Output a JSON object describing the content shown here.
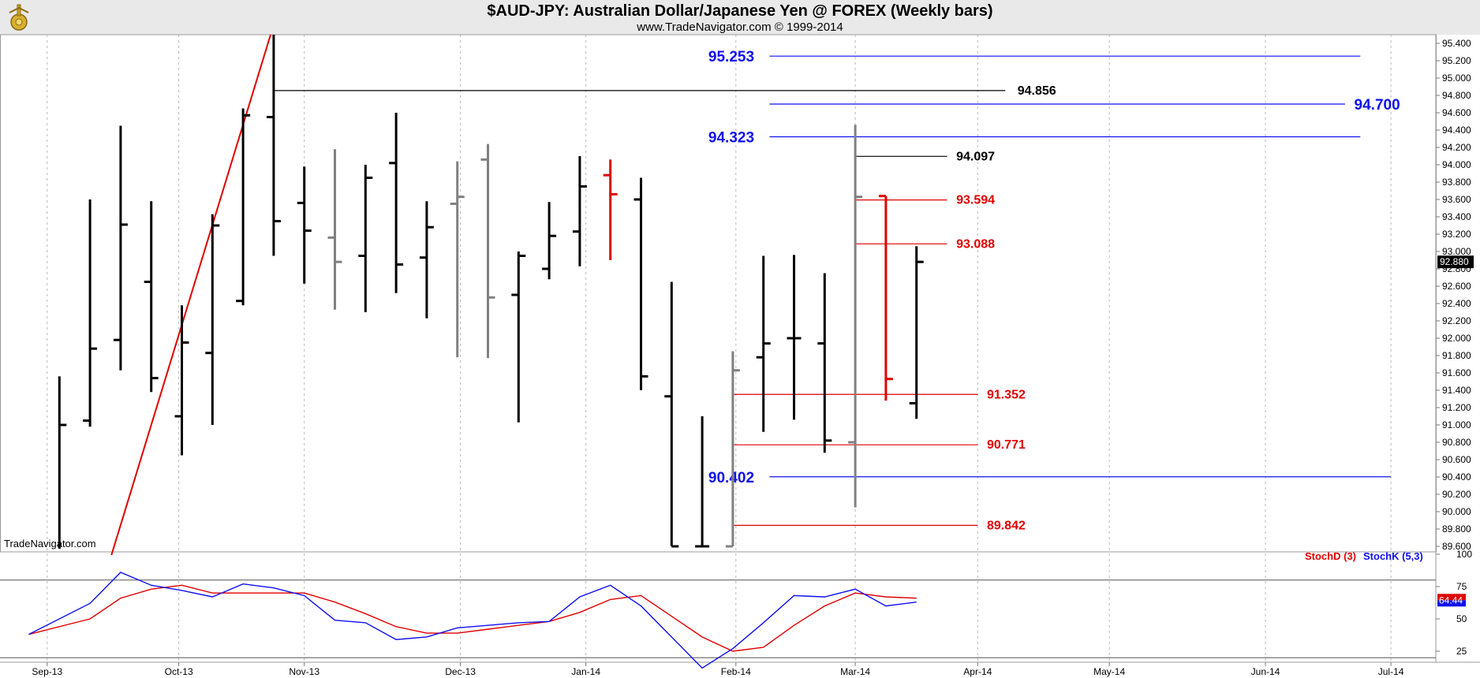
{
  "header": {
    "title": "$AUD-JPY:  Australian Dollar/Japanese Yen @ FOREX  (Weekly bars)",
    "subtitle": "www.TradeNavigator.com © 1999-2014",
    "watermark": "TradeNavigator.com"
  },
  "colors": {
    "up": "#000000",
    "neutral": "#808080",
    "down": "#e00000",
    "blue": "#1010ee",
    "red": "#e00000",
    "black": "#000000"
  },
  "chart_data": [
    {
      "type": "ohlc",
      "title": "$AUD-JPY:  Australian Dollar/Japanese Yen @ FOREX  (Weekly bars)",
      "ylim": [
        89.5,
        95.5
      ],
      "y_ticks": [
        "89.600",
        "89.800",
        "90.000",
        "90.200",
        "90.400",
        "90.600",
        "90.800",
        "91.000",
        "91.200",
        "91.400",
        "91.600",
        "91.800",
        "92.000",
        "92.200",
        "92.400",
        "92.600",
        "92.800",
        "93.000",
        "93.200",
        "93.400",
        "93.600",
        "93.800",
        "94.000",
        "94.200",
        "94.400",
        "94.600",
        "94.800",
        "95.000",
        "95.200",
        "95.400"
      ],
      "last_price": "92.880",
      "x_labels": [
        {
          "week": 0.6,
          "label": "Sep-13"
        },
        {
          "week": 4.9,
          "label": "Oct-13"
        },
        {
          "week": 9.0,
          "label": "Nov-13"
        },
        {
          "week": 14.1,
          "label": "Dec-13"
        },
        {
          "week": 18.2,
          "label": "Jan-14"
        },
        {
          "week": 23.1,
          "label": "Feb-14"
        },
        {
          "week": 27.0,
          "label": "Mar-14"
        },
        {
          "week": 31.0,
          "label": "Apr-14"
        },
        {
          "week": 35.3,
          "label": "May-14"
        },
        {
          "week": 40.4,
          "label": "Jun-14"
        },
        {
          "week": 44.5,
          "label": "Jul-14"
        }
      ],
      "bars": [
        {
          "week": 1,
          "open": 89.3,
          "high": 91.56,
          "low": 89.3,
          "close": 91.0,
          "color": "up"
        },
        {
          "week": 2,
          "open": 91.05,
          "high": 93.6,
          "low": 90.98,
          "close": 91.88,
          "color": "up"
        },
        {
          "week": 3,
          "open": 91.98,
          "high": 94.45,
          "low": 91.63,
          "close": 93.31,
          "color": "up"
        },
        {
          "week": 4,
          "open": 92.65,
          "high": 93.58,
          "low": 91.38,
          "close": 91.54,
          "color": "up"
        },
        {
          "week": 5,
          "open": 91.1,
          "high": 92.38,
          "low": 90.65,
          "close": 91.95,
          "color": "up"
        },
        {
          "week": 6,
          "open": 91.83,
          "high": 93.43,
          "low": 91.0,
          "close": 93.3,
          "color": "up"
        },
        {
          "week": 7,
          "open": 92.43,
          "high": 94.65,
          "low": 92.38,
          "close": 94.57,
          "color": "up"
        },
        {
          "week": 8,
          "open": 94.55,
          "high": 95.5,
          "low": 92.95,
          "close": 93.35,
          "color": "up"
        },
        {
          "week": 9,
          "open": 93.56,
          "high": 93.98,
          "low": 92.63,
          "close": 93.24,
          "color": "up"
        },
        {
          "week": 10,
          "open": 93.16,
          "high": 94.18,
          "low": 92.33,
          "close": 92.88,
          "color": "neutral"
        },
        {
          "week": 11,
          "open": 92.95,
          "high": 94.0,
          "low": 92.3,
          "close": 93.85,
          "color": "up"
        },
        {
          "week": 12,
          "open": 94.02,
          "high": 94.6,
          "low": 92.52,
          "close": 92.85,
          "color": "up"
        },
        {
          "week": 13,
          "open": 92.93,
          "high": 93.58,
          "low": 92.23,
          "close": 93.28,
          "color": "up"
        },
        {
          "week": 14,
          "open": 93.55,
          "high": 94.04,
          "low": 91.78,
          "close": 93.63,
          "color": "neutral"
        },
        {
          "week": 15,
          "open": 94.06,
          "high": 94.24,
          "low": 91.77,
          "close": 92.47,
          "color": "neutral"
        },
        {
          "week": 16,
          "open": 92.5,
          "high": 93.0,
          "low": 91.03,
          "close": 92.95,
          "color": "up"
        },
        {
          "week": 17,
          "open": 92.8,
          "high": 93.57,
          "low": 92.68,
          "close": 93.18,
          "color": "up"
        },
        {
          "week": 18,
          "open": 93.23,
          "high": 94.1,
          "low": 92.83,
          "close": 93.75,
          "color": "up"
        },
        {
          "week": 19,
          "open": 93.88,
          "high": 94.06,
          "low": 92.9,
          "close": 93.66,
          "color": "down"
        },
        {
          "week": 20,
          "open": 93.6,
          "high": 93.85,
          "low": 91.4,
          "close": 91.56,
          "color": "up"
        },
        {
          "week": 21,
          "open": 91.33,
          "high": 92.65,
          "low": 89.6,
          "close": 89.6,
          "color": "up"
        },
        {
          "week": 22,
          "open": 89.6,
          "high": 91.1,
          "low": 89.6,
          "close": 89.6,
          "color": "up"
        },
        {
          "week": 23,
          "open": 89.6,
          "high": 91.85,
          "low": 89.6,
          "close": 91.63,
          "color": "neutral"
        },
        {
          "week": 24,
          "open": 91.78,
          "high": 92.95,
          "low": 90.92,
          "close": 91.94,
          "color": "up"
        },
        {
          "week": 25,
          "open": 92.0,
          "high": 92.96,
          "low": 91.06,
          "close": 92.0,
          "color": "up"
        },
        {
          "week": 26,
          "open": 91.94,
          "high": 92.75,
          "low": 90.68,
          "close": 90.82,
          "color": "up"
        },
        {
          "week": 27,
          "open": 90.8,
          "high": 94.46,
          "low": 90.05,
          "close": 93.63,
          "color": "neutral"
        },
        {
          "week": 28,
          "open": 93.64,
          "high": 93.64,
          "low": 91.28,
          "close": 91.53,
          "color": "down"
        },
        {
          "week": 29,
          "open": 91.25,
          "high": 93.06,
          "low": 91.07,
          "close": 92.88,
          "color": "up"
        }
      ],
      "trendline": {
        "color": "red",
        "from": {
          "week": 2.7,
          "value": 89.5
        },
        "to": {
          "week": 7.9,
          "value": 95.5
        }
      },
      "levels": [
        {
          "value": 95.253,
          "label": "95.253",
          "color": "blue",
          "from_week": 24.2,
          "to_week": 43.5,
          "label_side": "left",
          "label_week": 23.7
        },
        {
          "value": 94.856,
          "label": "94.856",
          "color": "black",
          "from_week": 8.0,
          "to_week": 31.9,
          "label_side": "right",
          "label_week": 32.3
        },
        {
          "value": 94.7,
          "label": "94.700",
          "color": "blue",
          "from_week": 24.2,
          "to_week": 43.0,
          "label_side": "right",
          "label_week": 43.3
        },
        {
          "value": 94.323,
          "label": "94.323",
          "color": "blue",
          "from_week": 24.2,
          "to_week": 43.5,
          "label_side": "left",
          "label_week": 23.7
        },
        {
          "value": 94.097,
          "label": "94.097",
          "color": "black",
          "from_week": 27.0,
          "to_week": 30.0,
          "label_side": "right",
          "label_week": 30.3
        },
        {
          "value": 93.594,
          "label": "93.594",
          "color": "red",
          "from_week": 27.0,
          "to_week": 30.0,
          "label_side": "right",
          "label_week": 30.3
        },
        {
          "value": 93.088,
          "label": "93.088",
          "color": "red",
          "from_week": 27.0,
          "to_week": 30.0,
          "label_side": "right",
          "label_week": 30.3
        },
        {
          "value": 91.352,
          "label": "91.352",
          "color": "red",
          "from_week": 23.0,
          "to_week": 31.0,
          "label_side": "right",
          "label_week": 31.3
        },
        {
          "value": 90.771,
          "label": "90.771",
          "color": "red",
          "from_week": 23.0,
          "to_week": 31.0,
          "label_side": "right",
          "label_week": 31.3
        },
        {
          "value": 90.402,
          "label": "90.402",
          "color": "blue",
          "from_week": 24.2,
          "to_week": 44.5,
          "label_side": "left",
          "label_week": 23.7
        },
        {
          "value": 89.842,
          "label": "89.842",
          "color": "red",
          "from_week": 23.0,
          "to_week": 31.0,
          "label_side": "right",
          "label_week": 31.3
        }
      ]
    },
    {
      "type": "line",
      "ylim": [
        10,
        110
      ],
      "y_ticks": [
        "25",
        "50",
        "75",
        "100"
      ],
      "ref_lines": [
        20,
        80
      ],
      "last_value": "64.44",
      "series": [
        {
          "name": "StochD (3)",
          "color": "red",
          "x": [
            0,
            2,
            3,
            4,
            5,
            6,
            7,
            8,
            9,
            10,
            11,
            12,
            13,
            14,
            15,
            16,
            17,
            18,
            19,
            20,
            21,
            22,
            23,
            24,
            25,
            26,
            27,
            28,
            29
          ],
          "values": [
            38,
            50,
            66,
            73,
            76,
            70,
            70,
            70,
            70,
            63,
            54,
            44,
            39,
            39,
            42,
            45,
            48,
            55,
            65,
            68,
            52,
            36,
            25,
            28,
            45,
            60,
            70,
            67,
            66
          ]
        },
        {
          "name": "StochK (5,3)",
          "color": "blue",
          "x": [
            0,
            2,
            3,
            4,
            5,
            6,
            7,
            8,
            9,
            10,
            11,
            12,
            13,
            14,
            15,
            16,
            17,
            18,
            19,
            20,
            21,
            22,
            23,
            24,
            25,
            26,
            27,
            28,
            29
          ],
          "values": [
            38,
            62,
            86,
            76,
            72,
            67,
            77,
            74,
            68,
            49,
            47,
            34,
            36,
            43,
            45,
            47,
            48,
            67,
            76,
            60,
            36,
            12,
            27,
            47,
            68,
            67,
            73,
            60,
            63
          ]
        }
      ]
    }
  ]
}
